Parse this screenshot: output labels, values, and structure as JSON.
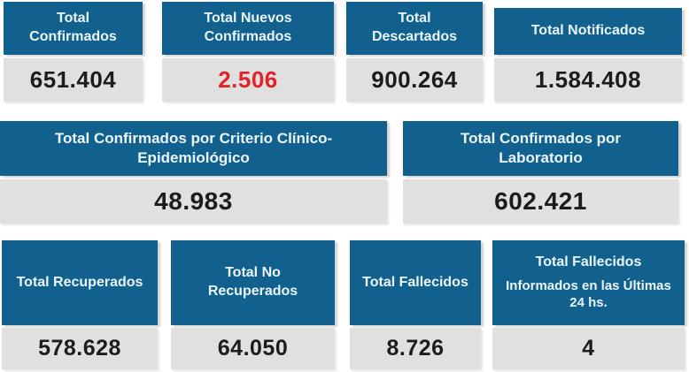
{
  "colors": {
    "header_bg": "#12608d",
    "header_text": "#eaf6fc",
    "value_bg": "#e0e0e0",
    "value_text": "#1c1c1c",
    "alert_value_text": "#e1232a",
    "page_bg": "#ffffff"
  },
  "rows": [
    {
      "cards": [
        {
          "title": "Total Confirmados",
          "value": "651.404"
        },
        {
          "title": "Total Nuevos Confirmados",
          "value": "2.506",
          "highlight": true
        },
        {
          "title": "Total Descartados",
          "value": "900.264"
        },
        {
          "title": "Total Notificados",
          "value": "1.584.408"
        }
      ]
    },
    {
      "cards": [
        {
          "title": "Total Confirmados por Criterio Clínico-Epidemiológico",
          "value": "48.983"
        },
        {
          "title": "Total Confirmados por Laboratorio",
          "value": "602.421"
        }
      ]
    },
    {
      "cards": [
        {
          "title": "Total Recuperados",
          "value": "578.628"
        },
        {
          "title": "Total No Recuperados",
          "value": "64.050"
        },
        {
          "title": "Total Fallecidos",
          "value": "8.726"
        },
        {
          "title": "Total Fallecidos",
          "subtitle": "Informados en las Últimas 24 hs.",
          "value": "4"
        }
      ]
    }
  ]
}
